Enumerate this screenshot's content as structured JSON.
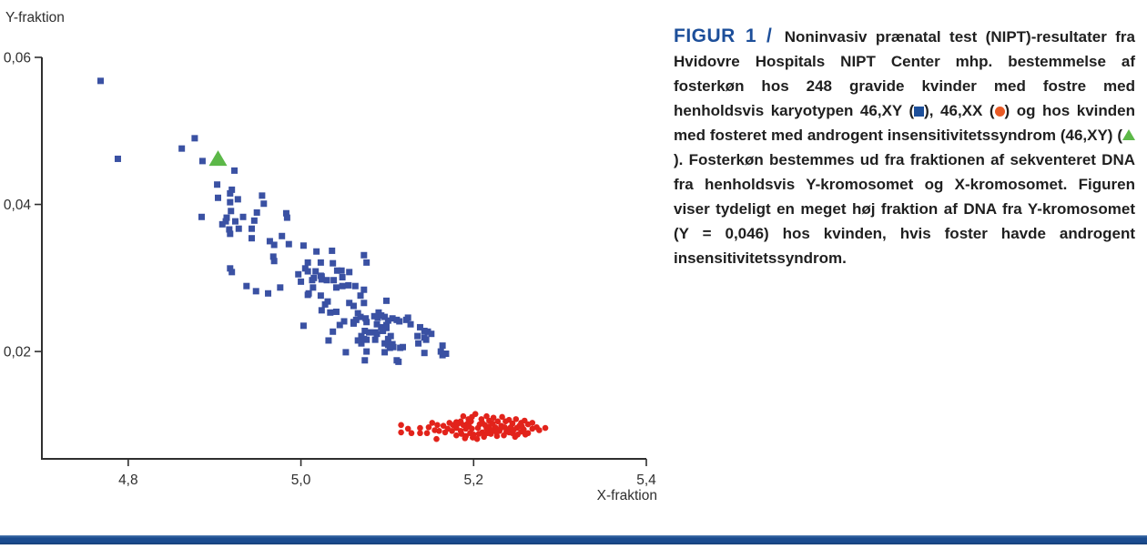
{
  "figure": {
    "title": "FIGUR 1 /",
    "caption_segments": {
      "s1": " Noninvasiv prænatal test (NIPT)-resultater fra Hvidovre Hospitals NIPT Center mhp. bestemmelse af fosterkøn hos 248 gravide kvinder med fostre med henholdsvis karyotypen 46,XY (",
      "s2": "), 46,XX (",
      "s3": ") og hos kvinden med fosteret med androgent insensitivitetssyndrom (46,XY) (",
      "s4": "). Fosterkøn bestemmes ud fra fraktionen af sekventeret DNA fra henholdsvis Y-kromosomet og X-kromosomet. Figuren viser tydeligt en meget høj fraktion af DNA fra Y-kromosomet (Y = 0,046) hos kvinden, hvis foster havde androgent insensitivitetssyndrom."
    },
    "accent_color": "#1d4f9a",
    "symbol_colors": {
      "square": "#1d4f9a",
      "circle": "#e95a25",
      "triangle": "#5cb848"
    }
  },
  "chart_data": {
    "type": "scatter",
    "title": "",
    "xlabel": "X-fraktion",
    "ylabel": "Y-fraktion",
    "xlim": [
      4.7,
      5.4
    ],
    "ylim": [
      0.0054,
      0.06
    ],
    "grid": false,
    "legend_position": "in-caption",
    "axis_color": "#2f2f2f",
    "xticks": {
      "values": [
        4.8,
        5.0,
        5.2,
        5.4
      ],
      "labels": [
        "4,8",
        "5,0",
        "5,2",
        "5,4"
      ]
    },
    "yticks": {
      "values": [
        0.02,
        0.04,
        0.06
      ],
      "labels": [
        "0,02",
        "0,04",
        "0,06"
      ]
    },
    "series": [
      {
        "name": "46,XY",
        "marker": "square",
        "color": "#3a51a3",
        "points": [
          [
            4.768,
            0.0568
          ],
          [
            4.788,
            0.0462
          ],
          [
            4.862,
            0.0476
          ],
          [
            4.877,
            0.049
          ],
          [
            4.886,
            0.0459
          ],
          [
            4.923,
            0.0446
          ],
          [
            4.903,
            0.0427
          ],
          [
            4.92,
            0.042
          ],
          [
            4.904,
            0.0409
          ],
          [
            4.927,
            0.0407
          ],
          [
            4.918,
            0.0403
          ],
          [
            4.955,
            0.0412
          ],
          [
            4.957,
            0.0401
          ],
          [
            4.949,
            0.0389
          ],
          [
            4.919,
            0.0391
          ],
          [
            4.885,
            0.0383
          ],
          [
            4.933,
            0.0383
          ],
          [
            4.918,
            0.0415
          ],
          [
            4.914,
            0.0382
          ],
          [
            4.983,
            0.0388
          ],
          [
            4.984,
            0.0382
          ],
          [
            4.913,
            0.0377
          ],
          [
            4.924,
            0.0377
          ],
          [
            4.909,
            0.0373
          ],
          [
            4.946,
            0.0378
          ],
          [
            4.917,
            0.0366
          ],
          [
            4.928,
            0.0367
          ],
          [
            4.943,
            0.0367
          ],
          [
            4.918,
            0.036
          ],
          [
            4.943,
            0.0354
          ],
          [
            4.964,
            0.035
          ],
          [
            4.978,
            0.0357
          ],
          [
            4.986,
            0.0346
          ],
          [
            4.969,
            0.0345
          ],
          [
            5.003,
            0.0344
          ],
          [
            5.036,
            0.0337
          ],
          [
            5.018,
            0.0336
          ],
          [
            4.968,
            0.0329
          ],
          [
            4.969,
            0.0323
          ],
          [
            5.008,
            0.0321
          ],
          [
            5.023,
            0.0321
          ],
          [
            5.037,
            0.032
          ],
          [
            5.073,
            0.0331
          ],
          [
            5.076,
            0.0321
          ],
          [
            4.918,
            0.0313
          ],
          [
            4.92,
            0.0308
          ],
          [
            5.047,
            0.031
          ],
          [
            5.056,
            0.0308
          ],
          [
            5.008,
            0.0309
          ],
          [
            5.017,
            0.0309
          ],
          [
            5.023,
            0.0303
          ],
          [
            4.997,
            0.0305
          ],
          [
            5.042,
            0.031
          ],
          [
            5.005,
            0.0313
          ],
          [
            5.015,
            0.03
          ],
          [
            5.048,
            0.0301
          ],
          [
            5.024,
            0.0302
          ],
          [
            5.024,
            0.0298
          ],
          [
            5.013,
            0.0297
          ],
          [
            5.03,
            0.0297
          ],
          [
            5.038,
            0.0297
          ],
          [
            5.014,
            0.0287
          ],
          [
            5.008,
            0.0277
          ],
          [
            5.041,
            0.0287
          ],
          [
            5.048,
            0.0289
          ],
          [
            5.055,
            0.029
          ],
          [
            5.063,
            0.0289
          ],
          [
            5.069,
            0.0276
          ],
          [
            5.023,
            0.0276
          ],
          [
            4.937,
            0.0289
          ],
          [
            4.948,
            0.0282
          ],
          [
            4.962,
            0.0279
          ],
          [
            4.976,
            0.0287
          ],
          [
            5.0,
            0.0295
          ],
          [
            5.009,
            0.0279
          ],
          [
            5.073,
            0.0284
          ],
          [
            5.099,
            0.0269
          ],
          [
            5.028,
            0.0264
          ],
          [
            5.031,
            0.0268
          ],
          [
            5.034,
            0.0253
          ],
          [
            5.041,
            0.0254
          ],
          [
            5.024,
            0.0256
          ],
          [
            5.056,
            0.0266
          ],
          [
            5.061,
            0.0262
          ],
          [
            5.066,
            0.0252
          ],
          [
            5.069,
            0.0247
          ],
          [
            5.075,
            0.0245
          ],
          [
            5.09,
            0.0253
          ],
          [
            5.073,
            0.0266
          ],
          [
            5.064,
            0.0243
          ],
          [
            5.061,
            0.024
          ],
          [
            5.085,
            0.0248
          ],
          [
            5.089,
            0.0246
          ],
          [
            5.093,
            0.0249
          ],
          [
            5.097,
            0.0247
          ],
          [
            5.101,
            0.0242
          ],
          [
            5.106,
            0.0245
          ],
          [
            5.111,
            0.0243
          ],
          [
            5.114,
            0.0241
          ],
          [
            5.122,
            0.0243
          ],
          [
            5.124,
            0.0246
          ],
          [
            5.099,
            0.0236
          ],
          [
            5.088,
            0.0237
          ],
          [
            5.05,
            0.0241
          ],
          [
            5.045,
            0.0236
          ],
          [
            5.003,
            0.0235
          ],
          [
            5.076,
            0.024
          ],
          [
            5.093,
            0.0233
          ],
          [
            5.061,
            0.0238
          ],
          [
            5.127,
            0.0237
          ],
          [
            5.138,
            0.0233
          ],
          [
            5.147,
            0.0227
          ],
          [
            5.151,
            0.0224
          ],
          [
            5.143,
            0.0219
          ],
          [
            5.135,
            0.0221
          ],
          [
            5.099,
            0.0232
          ],
          [
            5.095,
            0.0228
          ],
          [
            5.086,
            0.0226
          ],
          [
            5.088,
            0.0224
          ],
          [
            5.074,
            0.0228
          ],
          [
            5.079,
            0.0226
          ],
          [
            5.07,
            0.0221
          ],
          [
            5.076,
            0.0216
          ],
          [
            5.104,
            0.0221
          ],
          [
            5.101,
            0.0217
          ],
          [
            5.086,
            0.0216
          ],
          [
            5.066,
            0.0215
          ],
          [
            5.032,
            0.0215
          ],
          [
            5.037,
            0.0227
          ],
          [
            5.143,
            0.0228
          ],
          [
            5.145,
            0.0216
          ],
          [
            5.097,
            0.0211
          ],
          [
            5.101,
            0.0209
          ],
          [
            5.107,
            0.0206
          ],
          [
            5.115,
            0.0205
          ],
          [
            5.07,
            0.0211
          ],
          [
            5.052,
            0.0199
          ],
          [
            5.074,
            0.0188
          ],
          [
            5.111,
            0.0188
          ],
          [
            5.162,
            0.02
          ],
          [
            5.168,
            0.0197
          ],
          [
            5.136,
            0.0211
          ],
          [
            5.106,
            0.021
          ],
          [
            5.097,
            0.0199
          ],
          [
            5.103,
            0.0205
          ],
          [
            5.118,
            0.0206
          ],
          [
            5.073,
            0.0217
          ],
          [
            5.076,
            0.02
          ],
          [
            5.113,
            0.0186
          ],
          [
            5.143,
            0.0198
          ],
          [
            5.164,
            0.0195
          ],
          [
            5.164,
            0.0208
          ]
        ]
      },
      {
        "name": "46,XX",
        "marker": "circle",
        "color": "#e2231b",
        "points": [
          [
            5.116,
            0.01
          ],
          [
            5.116,
            0.009
          ],
          [
            5.138,
            0.0096
          ],
          [
            5.138,
            0.0089
          ],
          [
            5.148,
            0.0097
          ],
          [
            5.158,
            0.01
          ],
          [
            5.16,
            0.0092
          ],
          [
            5.167,
            0.009
          ],
          [
            5.172,
            0.0103
          ],
          [
            5.176,
            0.01
          ],
          [
            5.18,
            0.0096
          ],
          [
            5.182,
            0.0102
          ],
          [
            5.185,
            0.0105
          ],
          [
            5.188,
            0.01
          ],
          [
            5.191,
            0.0095
          ],
          [
            5.193,
            0.0102
          ],
          [
            5.195,
            0.0098
          ],
          [
            5.197,
            0.0105
          ],
          [
            5.198,
            0.0111
          ],
          [
            5.194,
            0.0108
          ],
          [
            5.188,
            0.0112
          ],
          [
            5.185,
            0.0092
          ],
          [
            5.18,
            0.0086
          ],
          [
            5.191,
            0.0085
          ],
          [
            5.196,
            0.0089
          ],
          [
            5.198,
            0.0095
          ],
          [
            5.157,
            0.0081
          ],
          [
            5.202,
            0.0115
          ],
          [
            5.209,
            0.0108
          ],
          [
            5.215,
            0.0112
          ],
          [
            5.218,
            0.0106
          ],
          [
            5.223,
            0.011
          ],
          [
            5.228,
            0.0105
          ],
          [
            5.233,
            0.0111
          ],
          [
            5.237,
            0.0105
          ],
          [
            5.241,
            0.0107
          ],
          [
            5.245,
            0.0102
          ],
          [
            5.249,
            0.0108
          ],
          [
            5.255,
            0.0103
          ],
          [
            5.259,
            0.0106
          ],
          [
            5.263,
            0.0101
          ],
          [
            5.268,
            0.0103
          ],
          [
            5.273,
            0.0097
          ],
          [
            5.276,
            0.0093
          ],
          [
            5.205,
            0.0096
          ],
          [
            5.21,
            0.009
          ],
          [
            5.215,
            0.0095
          ],
          [
            5.22,
            0.0088
          ],
          [
            5.225,
            0.0097
          ],
          [
            5.23,
            0.0092
          ],
          [
            5.235,
            0.0086
          ],
          [
            5.24,
            0.0094
          ],
          [
            5.245,
            0.0089
          ],
          [
            5.25,
            0.0096
          ],
          [
            5.255,
            0.0091
          ],
          [
            5.26,
            0.0087
          ],
          [
            5.207,
            0.0101
          ],
          [
            5.212,
            0.0084
          ],
          [
            5.218,
            0.0098
          ],
          [
            5.222,
            0.0102
          ],
          [
            5.227,
            0.0085
          ],
          [
            5.232,
            0.0099
          ],
          [
            5.238,
            0.0091
          ],
          [
            5.243,
            0.0097
          ],
          [
            5.248,
            0.0084
          ],
          [
            5.253,
            0.0099
          ],
          [
            5.258,
            0.0094
          ],
          [
            5.263,
            0.0089
          ],
          [
            5.268,
            0.0095
          ],
          [
            5.186,
            0.0088
          ],
          [
            5.19,
            0.0082
          ],
          [
            5.2,
            0.0087
          ],
          [
            5.204,
            0.0081
          ],
          [
            5.21,
            0.0103
          ],
          [
            5.216,
            0.0089
          ],
          [
            5.221,
            0.0093
          ],
          [
            5.226,
            0.0091
          ],
          [
            5.231,
            0.0095
          ],
          [
            5.236,
            0.0097
          ],
          [
            5.241,
            0.009
          ],
          [
            5.246,
            0.0093
          ],
          [
            5.251,
            0.0087
          ],
          [
            5.256,
            0.0098
          ],
          [
            5.175,
            0.0092
          ],
          [
            5.17,
            0.0095
          ],
          [
            5.165,
            0.0099
          ],
          [
            5.18,
            0.0104
          ],
          [
            5.155,
            0.0093
          ],
          [
            5.146,
            0.0089
          ],
          [
            5.152,
            0.0103
          ],
          [
            5.124,
            0.0095
          ],
          [
            5.128,
            0.0089
          ],
          [
            5.283,
            0.0096
          ],
          [
            5.199,
            0.0083
          ],
          [
            5.206,
            0.0088
          ],
          [
            5.213,
            0.01
          ]
        ]
      },
      {
        "name": "46,XY androgent insensitivitetssyndrom",
        "marker": "triangle",
        "color": "#5cb848",
        "points": [
          [
            4.904,
            0.046
          ]
        ]
      }
    ]
  },
  "footer": {
    "bar_color": "#1b4c8f"
  }
}
